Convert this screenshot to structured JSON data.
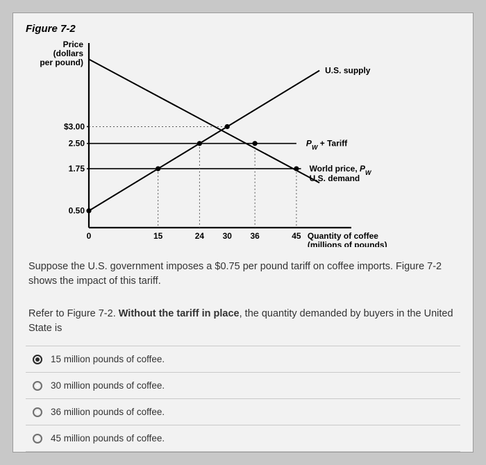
{
  "figure": {
    "title": "Figure 7-2",
    "y_axis_label_lines": [
      "Price",
      "(dollars",
      "per pound)"
    ],
    "x_axis_label_lines": [
      "Quantity of coffee",
      "(millions of pounds)"
    ],
    "y_ticks": [
      {
        "value": 0.5,
        "label": "0.50",
        "show_line": false
      },
      {
        "value": 1.75,
        "label": "1.75",
        "show_line": true
      },
      {
        "value": 2.5,
        "label": "2.50",
        "show_line": true
      },
      {
        "value": 3.0,
        "label": "$3.00",
        "show_line": false,
        "dotted": true
      }
    ],
    "x_ticks": [
      {
        "value": 0,
        "label": "0"
      },
      {
        "value": 15,
        "label": "15",
        "vline": true
      },
      {
        "value": 24,
        "label": "24",
        "vline": true
      },
      {
        "value": 30,
        "label": "30"
      },
      {
        "value": 36,
        "label": "36",
        "vline": true
      },
      {
        "value": 45,
        "label": "45",
        "vline": true
      }
    ],
    "x_range": [
      0,
      56
    ],
    "y_range": [
      0,
      5.4
    ],
    "lines": {
      "supply": {
        "from": [
          0,
          0.5
        ],
        "to": [
          50,
          4.666
        ],
        "label": "U.S. supply"
      },
      "demand": {
        "from": [
          0,
          5
        ],
        "to": [
          50,
          1.333
        ],
        "label": "U.S. demand"
      }
    },
    "price_lines": [
      {
        "y": 2.5,
        "x2": 45,
        "label": "P",
        "sub": "W",
        "suffix": " + Tariff"
      },
      {
        "y": 1.75,
        "x2": 46,
        "label": "World price, P",
        "sub": "W"
      }
    ],
    "dotted_line": {
      "y": 3.0,
      "x2": 30
    },
    "points": [
      {
        "x": 0,
        "y": 0.5
      },
      {
        "x": 15,
        "y": 1.75
      },
      {
        "x": 24,
        "y": 2.5
      },
      {
        "x": 30,
        "y": 3.0
      },
      {
        "x": 36,
        "y": 2.5
      },
      {
        "x": 45,
        "y": 1.75
      }
    ],
    "colors": {
      "axis": "#000000",
      "line": "#000000",
      "grid": "#000000",
      "dotted": "#555555",
      "point_fill": "#000000",
      "bg": "#f2f2f2"
    },
    "stroke": {
      "axis": 2.2,
      "curve": 2.0,
      "hline": 1.6,
      "vline": 1.0
    },
    "font": {
      "tick": 12,
      "axis_label": 12,
      "curve_label": 12
    }
  },
  "intro": "Suppose the U.S. government imposes a $0.75 per pound tariff on coffee imports. Figure 7-2 shows the impact of this tariff.",
  "question": {
    "prefix": "Refer to Figure 7-2. ",
    "bold": "Without the tariff in place",
    "suffix": ", the quantity demanded by buyers in the United State is"
  },
  "options": [
    {
      "label": "15 million pounds of coffee.",
      "selected": true
    },
    {
      "label": "30 million pounds of coffee.",
      "selected": false
    },
    {
      "label": "36 million pounds of coffee.",
      "selected": false
    },
    {
      "label": "45 million pounds of coffee.",
      "selected": false
    }
  ]
}
